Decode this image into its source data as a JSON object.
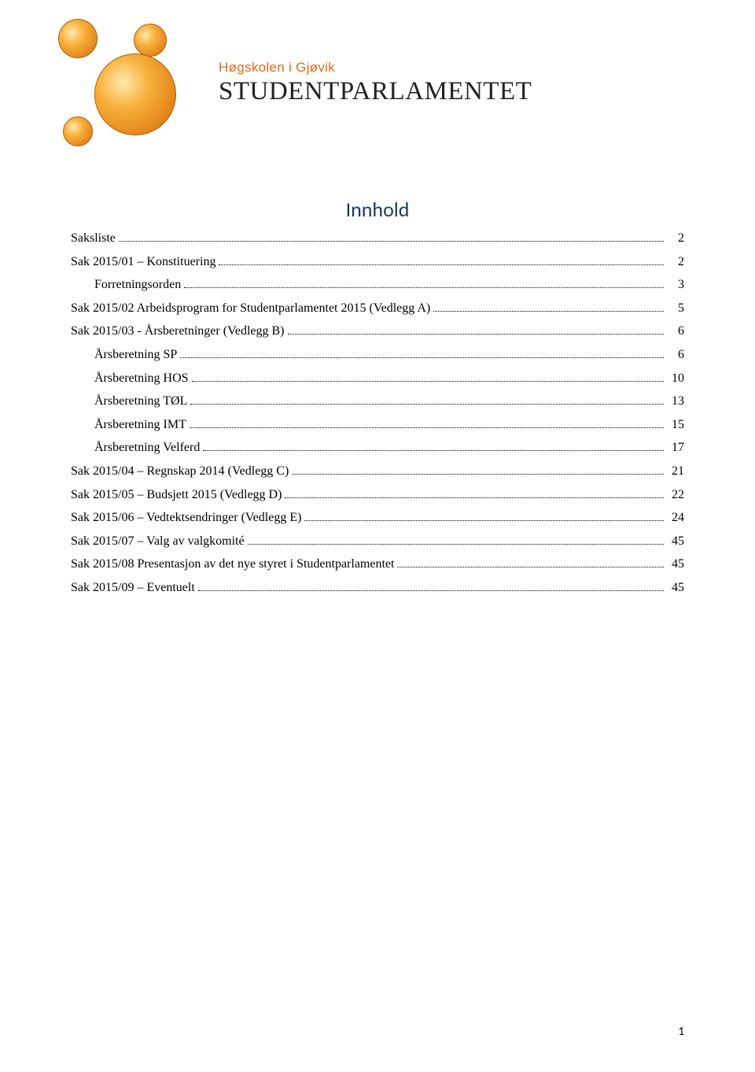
{
  "logo": {
    "subtitle": "Høgskolen i Gjøvik",
    "title": "STUDENTPARLAMENTET",
    "accent_color": "#e06a1a",
    "title_color": "#222222"
  },
  "toc": {
    "heading": "Innhold",
    "heading_color": "#1f3763",
    "entries": [
      {
        "label": "Saksliste",
        "page": "2",
        "indent": false
      },
      {
        "label": "Sak 2015/01 – Konstituering",
        "page": "2",
        "indent": false
      },
      {
        "label": "Forretningsorden",
        "page": "3",
        "indent": true
      },
      {
        "label": "Sak 2015/02 Arbeidsprogram for Studentparlamentet 2015 (Vedlegg A)",
        "page": "5",
        "indent": false
      },
      {
        "label": "Sak 2015/03 - Årsberetninger (Vedlegg B)",
        "page": "6",
        "indent": false
      },
      {
        "label": "Årsberetning SP",
        "page": "6",
        "indent": true
      },
      {
        "label": "Årsberetning HOS",
        "page": "10",
        "indent": true
      },
      {
        "label": "Årsberetning TØL",
        "page": "13",
        "indent": true
      },
      {
        "label": "Årsberetning IMT",
        "page": "15",
        "indent": true
      },
      {
        "label": "Årsberetning Velferd",
        "page": "17",
        "indent": true
      },
      {
        "label": "Sak 2015/04 – Regnskap 2014 (Vedlegg C)",
        "page": "21",
        "indent": false
      },
      {
        "label": "Sak 2015/05 – Budsjett 2015 (Vedlegg D)",
        "page": "22",
        "indent": false
      },
      {
        "label": "Sak 2015/06 – Vedtektsendringer (Vedlegg E)",
        "page": "24",
        "indent": false
      },
      {
        "label": "Sak 2015/07 – Valg av valgkomité",
        "page": "45",
        "indent": false
      },
      {
        "label": "Sak 2015/08 Presentasjon av det nye styret i Studentparlamentet",
        "page": "45",
        "indent": false
      },
      {
        "label": "Sak 2015/09 – Eventuelt",
        "page": "45",
        "indent": false
      }
    ]
  },
  "page_number": "1"
}
